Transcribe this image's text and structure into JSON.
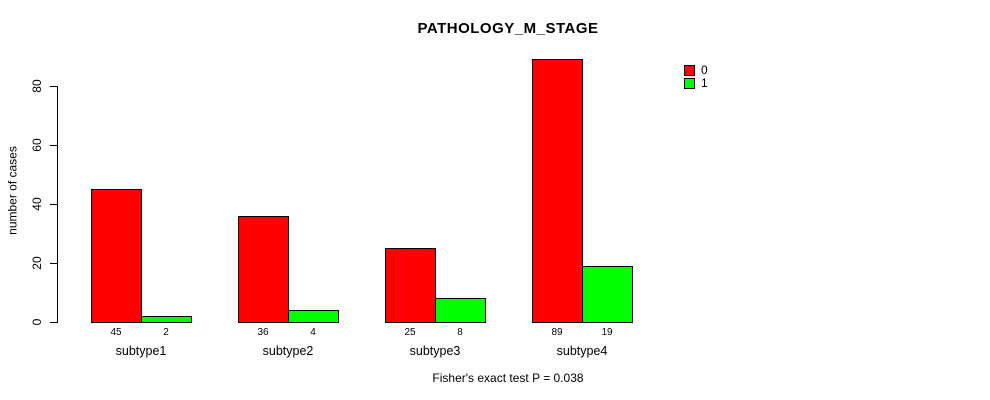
{
  "title": "PATHOLOGY_M_STAGE",
  "chart_data": {
    "type": "bar",
    "title": "PATHOLOGY_M_STAGE",
    "xlabel": "",
    "ylabel": "number of cases",
    "categories": [
      "subtype1",
      "subtype2",
      "subtype3",
      "subtype4"
    ],
    "series": [
      {
        "name": "0",
        "color": "#ff0000",
        "values": [
          45,
          36,
          25,
          89
        ]
      },
      {
        "name": "1",
        "color": "#00ff00",
        "values": [
          2,
          4,
          8,
          19
        ]
      }
    ],
    "bar_value_labels": [
      [
        "45",
        "2"
      ],
      [
        "36",
        "4"
      ],
      [
        "25",
        "8"
      ],
      [
        "89",
        "19"
      ]
    ],
    "yticks": [
      0,
      20,
      40,
      60,
      80
    ],
    "ylim": [
      0,
      89
    ],
    "grid": false,
    "legend_position": "top-right",
    "legend": [
      {
        "label": "0",
        "color": "#ff0000"
      },
      {
        "label": "1",
        "color": "#00ff00"
      }
    ],
    "annotation": "Fisher's exact test P = 0.038"
  }
}
